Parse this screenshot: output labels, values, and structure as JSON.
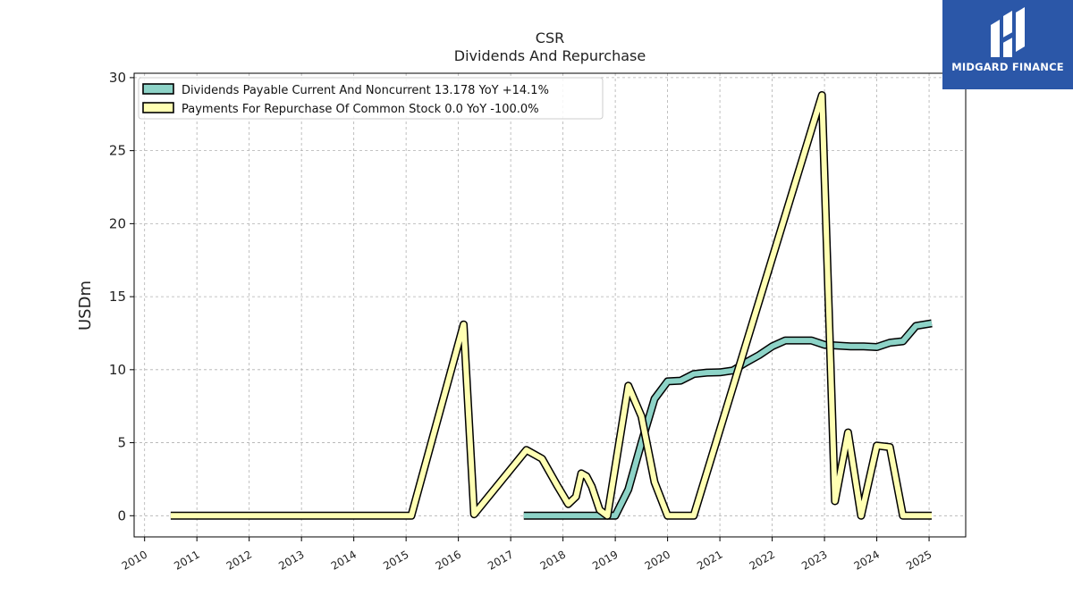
{
  "brand": {
    "name": "MIDGARD FINANCE",
    "bg_color": "#2b57a8"
  },
  "chart_data": {
    "type": "line",
    "title": "CSR",
    "subtitle": "Dividends And Repurchase",
    "xlabel": "",
    "ylabel": "USDm",
    "xlim": [
      2009.8,
      2025.7
    ],
    "ylim": [
      -1.45,
      30.3
    ],
    "x_ticks": [
      "2010",
      "2011",
      "2012",
      "2013",
      "2014",
      "2015",
      "2016",
      "2017",
      "2018",
      "2019",
      "2020",
      "2021",
      "2022",
      "2023",
      "2024",
      "2025"
    ],
    "y_ticks": [
      "0",
      "5",
      "10",
      "15",
      "20",
      "25",
      "30"
    ],
    "grid": true,
    "legend_position": "top-left",
    "series": [
      {
        "name": "Dividends Payable Current And Noncurrent",
        "legend_label": "Dividends Payable Current And Noncurrent  13.178 YoY +14.1%",
        "color": "#8dd3c7",
        "x": [
          2017.25,
          2017.5,
          2017.75,
          2018.0,
          2018.25,
          2018.5,
          2018.75,
          2019.0,
          2019.25,
          2019.5,
          2019.75,
          2020.0,
          2020.25,
          2020.5,
          2020.75,
          2021.0,
          2021.25,
          2021.5,
          2021.75,
          2022.0,
          2022.25,
          2022.5,
          2022.75,
          2023.0,
          2023.25,
          2023.5,
          2023.75,
          2024.0,
          2024.25,
          2024.5,
          2024.75,
          2025.05
        ],
        "y": [
          0,
          0,
          0,
          0,
          0,
          0,
          0,
          0,
          1.8,
          5.0,
          8.0,
          9.2,
          9.25,
          9.7,
          9.8,
          9.82,
          9.95,
          10.5,
          11.0,
          11.6,
          12.0,
          12.0,
          12.0,
          11.7,
          11.65,
          11.6,
          11.6,
          11.55,
          11.85,
          11.95,
          13.0,
          13.18
        ]
      },
      {
        "name": "Payments For Repurchase Of Common Stock",
        "legend_label": "Payments For Repurchase Of Common Stock  0.0 YoY -100.0%",
        "color": "#ffffb3",
        "x": [
          2010.5,
          2011.0,
          2012.0,
          2013.0,
          2014.0,
          2015.0,
          2015.1,
          2016.1,
          2016.3,
          2017.3,
          2017.6,
          2017.9,
          2018.1,
          2018.25,
          2018.35,
          2018.45,
          2018.55,
          2018.7,
          2018.85,
          2019.25,
          2019.5,
          2019.75,
          2020.0,
          2020.5,
          2022.95,
          2023.2,
          2023.45,
          2023.7,
          2024.0,
          2024.25,
          2024.5,
          2024.75,
          2025.05
        ],
        "y": [
          0,
          0,
          0,
          0,
          0,
          0,
          0,
          13.1,
          0.1,
          4.5,
          3.9,
          2.0,
          0.8,
          1.3,
          2.9,
          2.7,
          2.0,
          0.4,
          0.0,
          8.9,
          6.8,
          2.3,
          0.0,
          0.0,
          28.8,
          1.0,
          5.7,
          0.0,
          4.8,
          4.7,
          0.0,
          0.0,
          0.0
        ]
      }
    ]
  }
}
